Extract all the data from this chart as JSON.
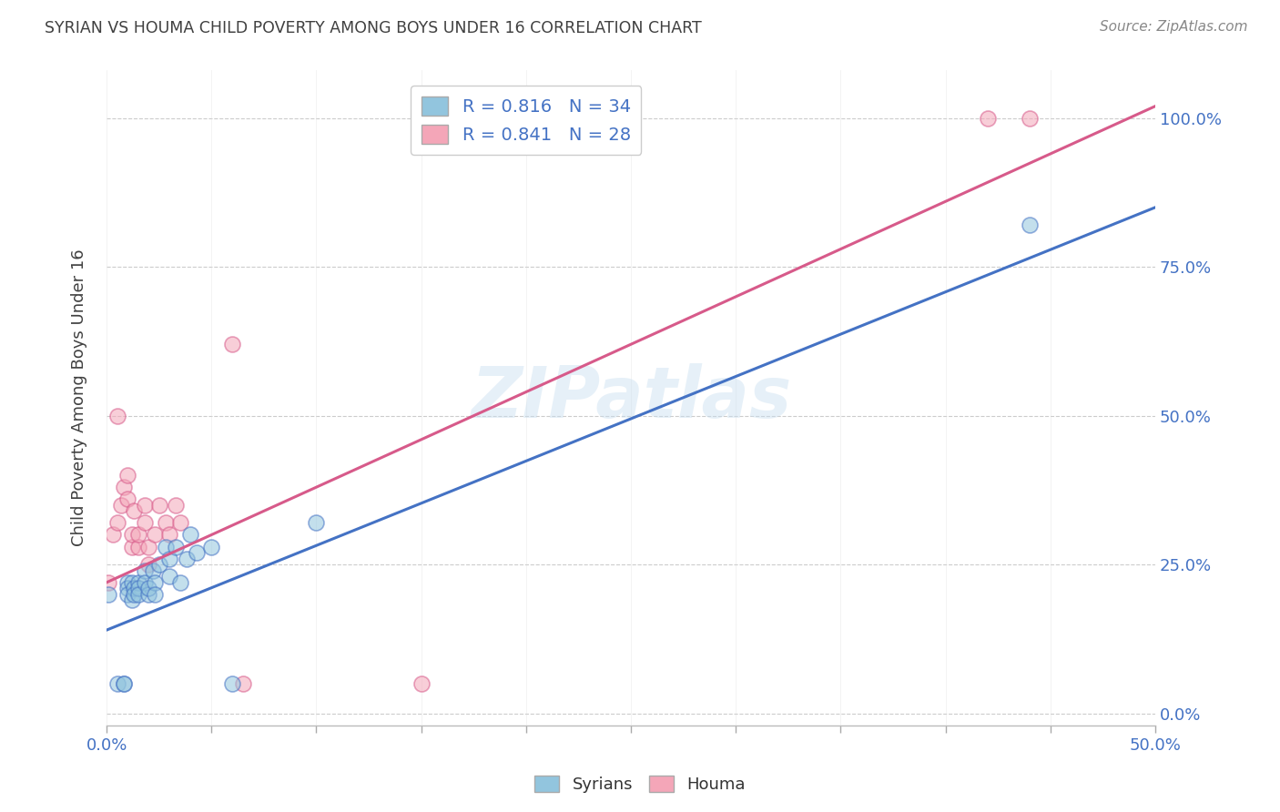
{
  "title": "SYRIAN VS HOUMA CHILD POVERTY AMONG BOYS UNDER 16 CORRELATION CHART",
  "source": "Source: ZipAtlas.com",
  "ylabel": "Child Poverty Among Boys Under 16",
  "watermark": "ZIPatlas",
  "legend_label1": "R = 0.816   N = 34",
  "legend_label2": "R = 0.841   N = 28",
  "legend_bottom1": "Syrians",
  "legend_bottom2": "Houma",
  "xlim": [
    0.0,
    0.5
  ],
  "ylim": [
    -0.02,
    1.08
  ],
  "xticks": [
    0.0,
    0.05,
    0.1,
    0.15,
    0.2,
    0.25,
    0.3,
    0.35,
    0.4,
    0.45,
    0.5
  ],
  "xtick_labels_show": [
    "0.0%",
    "",
    "",
    "",
    "",
    "",
    "",
    "",
    "",
    "",
    "50.0%"
  ],
  "yticks": [
    0.0,
    0.25,
    0.5,
    0.75,
    1.0
  ],
  "ytick_labels": [
    "0.0%",
    "25.0%",
    "50.0%",
    "75.0%",
    "100.0%"
  ],
  "color_blue": "#92c5de",
  "color_pink": "#f4a6b8",
  "color_line_blue": "#4472c4",
  "color_line_pink": "#d75a8a",
  "color_axis_blue": "#4472c4",
  "color_title": "#404040",
  "syrians_x": [
    0.001,
    0.005,
    0.008,
    0.008,
    0.01,
    0.01,
    0.01,
    0.012,
    0.012,
    0.013,
    0.013,
    0.015,
    0.015,
    0.015,
    0.018,
    0.018,
    0.02,
    0.02,
    0.022,
    0.023,
    0.023,
    0.025,
    0.028,
    0.03,
    0.03,
    0.033,
    0.035,
    0.038,
    0.04,
    0.043,
    0.05,
    0.06,
    0.1,
    0.44
  ],
  "syrians_y": [
    0.2,
    0.05,
    0.05,
    0.05,
    0.22,
    0.21,
    0.2,
    0.22,
    0.19,
    0.21,
    0.2,
    0.22,
    0.21,
    0.2,
    0.24,
    0.22,
    0.2,
    0.21,
    0.24,
    0.22,
    0.2,
    0.25,
    0.28,
    0.23,
    0.26,
    0.28,
    0.22,
    0.26,
    0.3,
    0.27,
    0.28,
    0.05,
    0.32,
    0.82
  ],
  "houma_x": [
    0.001,
    0.003,
    0.005,
    0.005,
    0.007,
    0.008,
    0.01,
    0.01,
    0.012,
    0.012,
    0.013,
    0.015,
    0.015,
    0.018,
    0.018,
    0.02,
    0.02,
    0.023,
    0.025,
    0.028,
    0.03,
    0.033,
    0.035,
    0.06,
    0.065,
    0.15,
    0.42,
    0.44
  ],
  "houma_y": [
    0.22,
    0.3,
    0.32,
    0.5,
    0.35,
    0.38,
    0.36,
    0.4,
    0.28,
    0.3,
    0.34,
    0.28,
    0.3,
    0.32,
    0.35,
    0.25,
    0.28,
    0.3,
    0.35,
    0.32,
    0.3,
    0.35,
    0.32,
    0.62,
    0.05,
    0.05,
    1.0,
    1.0
  ],
  "blue_line": [
    0.0,
    0.5,
    0.14,
    0.85
  ],
  "pink_line": [
    0.0,
    0.5,
    0.22,
    1.02
  ]
}
